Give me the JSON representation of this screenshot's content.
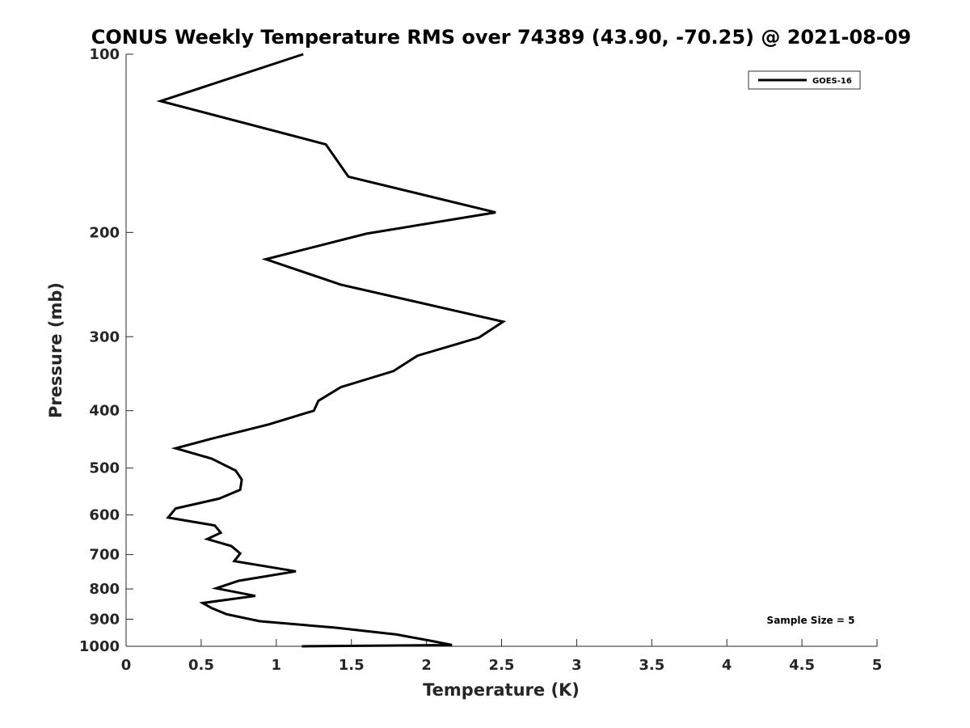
{
  "chart_data": {
    "type": "line",
    "title": "CONUS Weekly Temperature RMS over 74389 (43.90, -70.25) @ 2021-08-09",
    "xlabel": "Temperature (K)",
    "ylabel": "Pressure (mb)",
    "xlim": [
      0,
      5
    ],
    "ylim": [
      100,
      1000
    ],
    "yscale": "log",
    "y_reversed": true,
    "x_ticks": [
      0,
      0.5,
      1,
      1.5,
      2,
      2.5,
      3,
      3.5,
      4,
      4.5,
      5
    ],
    "x_tick_labels": [
      "0",
      "0.5",
      "1",
      "1.5",
      "2",
      "2.5",
      "3",
      "3.5",
      "4",
      "4.5",
      "5"
    ],
    "y_ticks": [
      100,
      200,
      300,
      400,
      500,
      600,
      700,
      800,
      900,
      1000
    ],
    "y_tick_labels": [
      "100",
      "200",
      "300",
      "400",
      "500",
      "600",
      "700",
      "800",
      "900",
      "1000"
    ],
    "grid": false,
    "legend_position": "top-right",
    "annotation": "Sample Size = 5",
    "series": [
      {
        "name": "GOES-16",
        "color": "#000000",
        "x": [
          1.18,
          0.23,
          1.33,
          1.48,
          2.46,
          1.6,
          0.93,
          1.43,
          2.51,
          2.35,
          1.94,
          1.78,
          1.43,
          1.28,
          1.25,
          0.95,
          0.57,
          0.33,
          0.57,
          0.73,
          0.77,
          0.76,
          0.62,
          0.33,
          0.28,
          0.59,
          0.63,
          0.54,
          0.7,
          0.76,
          0.72,
          1.13,
          0.75,
          0.6,
          0.86,
          0.51,
          0.57,
          0.67,
          0.89,
          1.39,
          1.8,
          2.02,
          2.17,
          1.17
        ],
        "y": [
          100,
          120,
          142,
          161,
          185,
          201,
          222,
          245,
          283,
          301,
          323,
          343,
          365,
          385,
          400,
          422,
          446,
          463,
          482,
          505,
          523,
          544,
          563,
          585,
          606,
          625,
          643,
          659,
          677,
          697,
          718,
          747,
          775,
          798,
          822,
          845,
          862,
          883,
          907,
          930,
          955,
          978,
          995,
          1000
        ]
      }
    ]
  }
}
